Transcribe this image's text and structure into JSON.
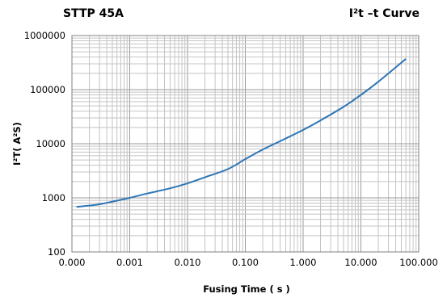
{
  "chart_data": {
    "type": "line",
    "title_left": "STTP 45A",
    "title_right": "I²t –t Curve",
    "xlabel": "Fusing Time ( s )",
    "ylabel": "I²T(  A²S)",
    "x_scale": "log",
    "y_scale": "log",
    "xlim": [
      0.0001,
      100
    ],
    "ylim": [
      100,
      1000000
    ],
    "x_tick_values": [
      0.0001,
      0.001,
      0.01,
      0.1,
      1,
      10,
      100
    ],
    "x_tick_labels": [
      "0.000",
      "0.001",
      "0.010",
      "0.100",
      "1.000",
      "10.000",
      "100.000"
    ],
    "y_tick_values": [
      100,
      1000,
      10000,
      100000,
      1000000
    ],
    "y_tick_labels": [
      "100",
      "1000",
      "10000",
      "100000",
      "1000000"
    ],
    "grid": true,
    "line_color": "#2e75b6",
    "series": [
      {
        "x": [
          0.00012,
          0.0002,
          0.0003,
          0.0005,
          0.001,
          0.002,
          0.005,
          0.01,
          0.02,
          0.05,
          0.1,
          0.2,
          0.5,
          1,
          2,
          5,
          10,
          20,
          60
        ],
        "values": [
          680,
          720,
          760,
          850,
          1000,
          1200,
          1500,
          1850,
          2400,
          3400,
          5200,
          7800,
          12500,
          18000,
          27000,
          48000,
          80000,
          140000,
          370000
        ]
      }
    ]
  }
}
